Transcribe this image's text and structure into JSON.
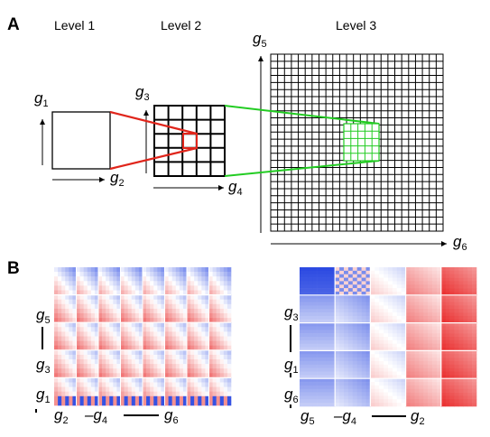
{
  "panels": {
    "a": "A",
    "b": "B"
  },
  "levels": [
    "Level 1",
    "Level 2",
    "Level 3"
  ],
  "axes": {
    "level1": {
      "vertical": [
        "g",
        "1"
      ],
      "horizontal": [
        "g",
        "2"
      ]
    },
    "level2": {
      "vertical": [
        "g",
        "3"
      ],
      "horizontal": [
        "g",
        "4"
      ]
    },
    "level3": {
      "vertical": [
        "g",
        "5"
      ],
      "horizontal": [
        "g",
        "6"
      ]
    }
  },
  "grids": {
    "level1_cells": 1,
    "level2_cells": 5,
    "level3_cells": 25
  },
  "colors": {
    "level1_link": "#e0251b",
    "level2_link": "#22cc22",
    "high": "#e82020",
    "low": "#1f3fe0"
  },
  "heatmap_left": {
    "y_labels": [
      [
        "g",
        "5"
      ],
      [
        "g",
        "3"
      ],
      [
        "g",
        "1"
      ]
    ],
    "x_labels": [
      [
        "g",
        "2"
      ],
      [
        "–g",
        "4"
      ],
      [
        "g",
        "6"
      ]
    ]
  },
  "heatmap_right": {
    "y_labels": [
      [
        "g",
        "3"
      ],
      [
        "g",
        "1"
      ],
      [
        "g",
        "6"
      ]
    ],
    "x_labels": [
      [
        "g",
        "5"
      ],
      [
        "–g",
        "4"
      ],
      [
        "g",
        "2"
      ]
    ]
  }
}
